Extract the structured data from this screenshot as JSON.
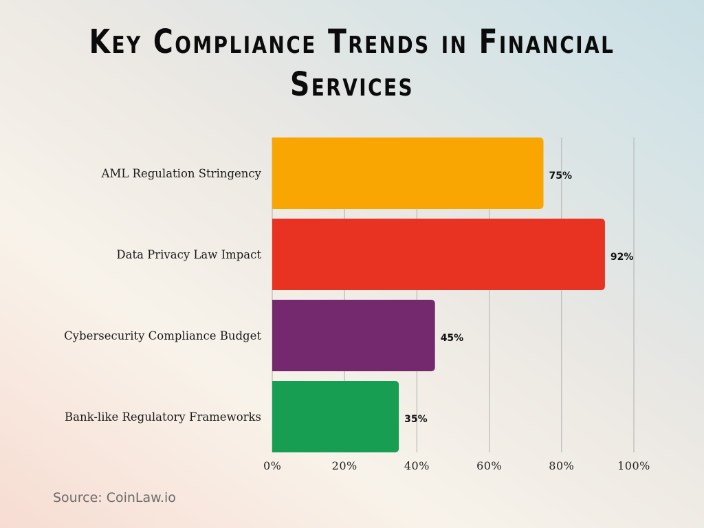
{
  "chart_data": {
    "type": "bar",
    "orientation": "horizontal",
    "title": "Key Compliance Trends in Financial Services",
    "categories": [
      "AML Regulation Stringency",
      "Data Privacy Law Impact",
      "Cybersecurity Compliance Budget",
      "Bank-like Regulatory Frameworks"
    ],
    "values": [
      75,
      92,
      45,
      35
    ],
    "data_labels": [
      "75%",
      "92%",
      "45%",
      "35%"
    ],
    "colors": [
      "#F9A602",
      "#E83222",
      "#74296F",
      "#179E53"
    ],
    "xlim": [
      0,
      100
    ],
    "xticks": [
      "0%",
      "20%",
      "40%",
      "60%",
      "80%",
      "100%"
    ],
    "grid": true,
    "xlabel": "",
    "ylabel": ""
  },
  "source": "Source: CoinLaw.io"
}
